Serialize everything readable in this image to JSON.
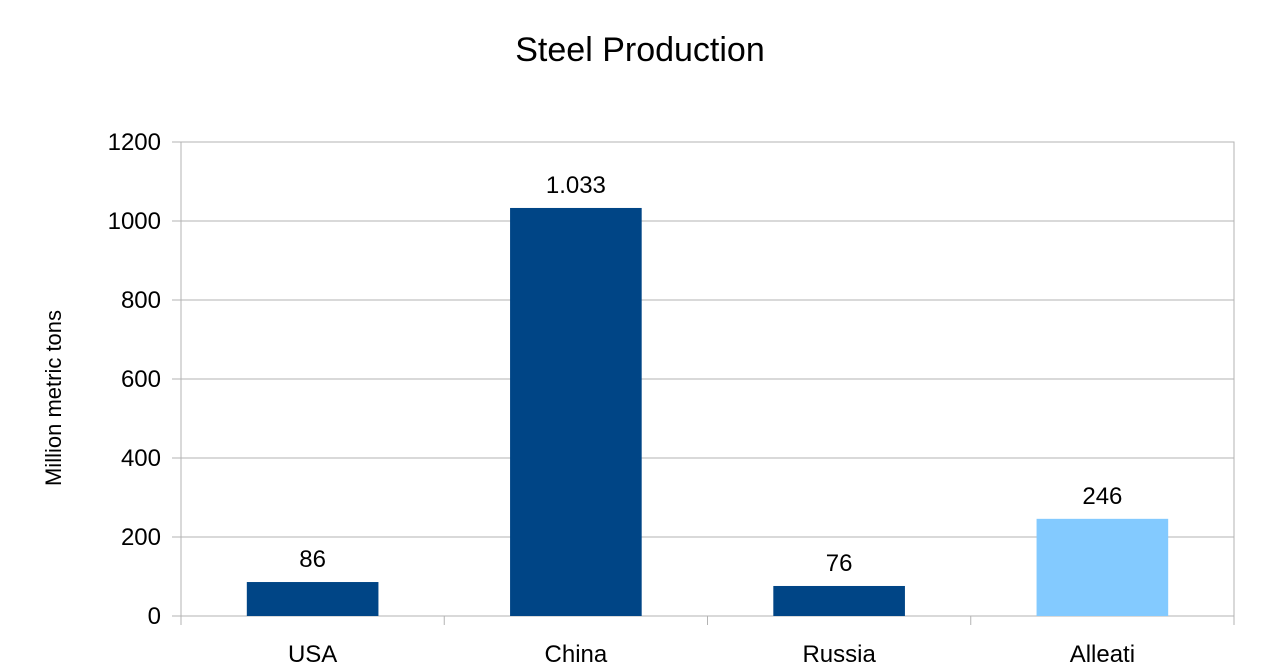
{
  "chart_data": {
    "type": "bar",
    "title": "Steel Production",
    "xlabel": "",
    "ylabel": "Million metric tons",
    "categories": [
      "USA",
      "China",
      "Russia",
      "Alleati"
    ],
    "values": [
      86,
      1033,
      76,
      246
    ],
    "data_labels": [
      "86",
      "1.033",
      "76",
      "246"
    ],
    "bar_colors": [
      "#004586",
      "#004586",
      "#004586",
      "#83caff"
    ],
    "ylim": [
      0,
      1200
    ],
    "yticks": [
      0,
      200,
      400,
      600,
      800,
      1000,
      1200
    ],
    "grid": true,
    "legend": "none"
  }
}
